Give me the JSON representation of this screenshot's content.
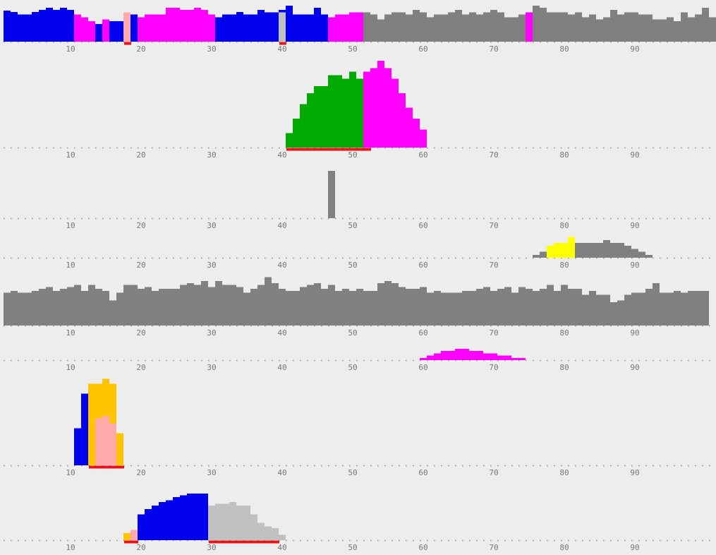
{
  "chart_data": {
    "type": "bar",
    "colors": {
      "background": "#ededed",
      "axis_dots": "#8a8a8a",
      "tick_text": "#777777",
      "marker": "#e8141c",
      "blue": "#0000ee",
      "magenta": "#ff00ff",
      "grey": "#808080",
      "silver": "#c0c0c0",
      "pink": "#ffaaaa",
      "green": "#00aa00",
      "yellow": "#ffff00",
      "orange": "#ffc400"
    },
    "x_range": [
      0,
      100
    ],
    "x_ticks": [
      10,
      20,
      30,
      40,
      50,
      60,
      70,
      80,
      90
    ],
    "tracks": [
      {
        "y_max": 50,
        "segments": [
          {
            "color": "blue",
            "x": 1,
            "values": [
              46,
              44,
              40,
              40,
              44,
              47,
              50,
              47,
              50,
              47
            ]
          },
          {
            "color": "magenta",
            "x": 11,
            "values": [
              40,
              36,
              30
            ]
          },
          {
            "color": "blue",
            "x": 14,
            "values": [
              26
            ]
          },
          {
            "color": "magenta",
            "x": 15,
            "values": [
              33
            ]
          },
          {
            "color": "blue",
            "x": 16,
            "values": [
              30,
              30
            ]
          },
          {
            "color": "pink",
            "x": 18,
            "values": [
              43
            ]
          },
          {
            "color": "blue",
            "x": 19,
            "values": [
              40
            ]
          },
          {
            "color": "magenta",
            "x": 20,
            "values": [
              36,
              40,
              40,
              40,
              50,
              50,
              47,
              47,
              50,
              47,
              40
            ]
          },
          {
            "color": "blue",
            "x": 31,
            "values": [
              36,
              40,
              40,
              44,
              40,
              40,
              47,
              43,
              43,
              47,
              53
            ]
          },
          {
            "color": "silver",
            "x": 40,
            "values": [
              43
            ]
          },
          {
            "color": "blue",
            "x": 41,
            "values": [
              36,
              40,
              40,
              40,
              50,
              40
            ]
          },
          {
            "color": "magenta",
            "x": 47,
            "values": [
              36,
              40,
              40,
              43,
              43
            ]
          },
          {
            "color": "grey",
            "x": 52,
            "values": [
              43,
              40,
              33,
              40,
              43,
              43,
              40,
              47,
              43,
              36,
              40,
              40,
              43,
              47,
              40,
              43,
              40,
              43,
              47,
              43,
              36,
              36,
              40,
              43,
              53,
              50,
              43,
              43,
              43
            ]
          },
          {
            "color": "magenta",
            "x": 75,
            "values": [
              43
            ]
          },
          {
            "color": "grey",
            "x": 76,
            "values": [
              43,
              50,
              43,
              43,
              40,
              40,
              43,
              36,
              40,
              33,
              36,
              47,
              40,
              43,
              43,
              40,
              40,
              33,
              33,
              36,
              30,
              43,
              36,
              40,
              50,
              36
            ]
          }
        ],
        "markers": [
          [
            18,
            19
          ],
          [
            40,
            41
          ]
        ]
      },
      {
        "y_max": 25,
        "segments": [
          {
            "color": "green",
            "x": 41,
            "values": [
              4,
              8,
              12,
              15,
              17,
              17,
              20,
              20,
              19,
              21,
              19
            ]
          },
          {
            "color": "magenta",
            "x": 52,
            "values": [
              21,
              22,
              24,
              22,
              19,
              15,
              11,
              8,
              5
            ]
          }
        ],
        "markers": [
          [
            41,
            53
          ]
        ]
      },
      {
        "y_max": 10,
        "segments": [
          {
            "color": "grey",
            "x": 47,
            "values": [
              8
            ]
          }
        ],
        "markers": []
      },
      {
        "y_max": 10,
        "segments": [
          {
            "color": "grey",
            "x": 76,
            "values": [
              1,
              2
            ]
          },
          {
            "color": "yellow",
            "x": 78,
            "values": [
              4,
              5,
              5,
              7
            ]
          },
          {
            "color": "grey",
            "x": 82,
            "values": [
              5,
              5,
              5,
              5,
              6,
              5,
              5,
              4,
              3,
              2,
              1
            ]
          }
        ],
        "markers": []
      },
      {
        "y_max": 30,
        "segments": [
          {
            "color": "grey",
            "x": 1,
            "values": [
              17,
              18,
              17,
              17,
              18,
              19,
              20,
              18,
              19,
              20,
              21,
              18,
              21,
              19,
              18,
              13,
              17,
              21,
              21,
              19,
              20,
              18,
              19,
              19,
              19,
              21,
              22,
              21,
              23,
              20,
              23,
              21,
              21,
              20,
              17,
              19,
              21,
              25,
              22,
              19,
              18,
              18,
              20,
              21,
              22,
              19,
              21,
              18,
              19,
              18,
              19,
              18,
              18,
              22,
              23,
              22,
              20,
              19,
              19,
              20,
              17,
              18,
              17,
              17,
              17,
              18,
              18,
              19,
              20,
              18,
              19,
              20,
              17,
              20,
              19,
              18,
              19,
              21,
              18,
              21,
              19,
              19,
              16,
              18,
              16,
              16,
              12,
              13,
              16,
              17,
              17,
              19,
              22,
              17,
              17,
              18,
              17,
              18,
              18,
              18
            ]
          }
        ],
        "markers": []
      },
      {
        "y_max": 10,
        "segments": [
          {
            "color": "magenta",
            "x": 60,
            "values": [
              1,
              2,
              3,
              4,
              4,
              5,
              5,
              4,
              4,
              3,
              3,
              2,
              2,
              1,
              1
            ]
          }
        ],
        "markers": []
      },
      {
        "y_max": 40,
        "segments": [
          {
            "color": "blue",
            "x": 11,
            "values": [
              15,
              29
            ]
          }
        ],
        "overlays": [
          {
            "color": "orange",
            "x": 13,
            "values": [
              33,
              33,
              35,
              33,
              13
            ]
          },
          {
            "color": "pink",
            "x": 14,
            "values": [
              19,
              20,
              17
            ]
          }
        ],
        "markers": [
          [
            13,
            18
          ]
        ]
      },
      {
        "y_max": 40,
        "segments": [
          {
            "color": "orange",
            "x": 18,
            "values": [
              4
            ]
          },
          {
            "color": "pink",
            "x": 19,
            "values": [
              6
            ]
          },
          {
            "color": "blue",
            "x": 20,
            "values": [
              15,
              18,
              20,
              22,
              23,
              25,
              26,
              27,
              27,
              27
            ]
          },
          {
            "color": "silver",
            "x": 30,
            "values": [
              20,
              21,
              21,
              22,
              20,
              20,
              15,
              10,
              8,
              7,
              3
            ]
          }
        ],
        "markers": [
          [
            18,
            20
          ],
          [
            30,
            40
          ]
        ]
      }
    ]
  }
}
